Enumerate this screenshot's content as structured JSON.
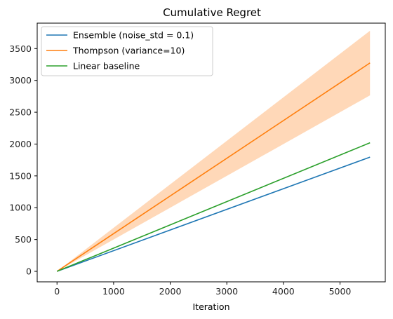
{
  "chart_data": {
    "type": "line",
    "title": "Cumulative Regret",
    "xlabel": "Iteration",
    "ylabel": "",
    "xlim": [
      -350,
      5800
    ],
    "ylim": [
      -165,
      3900
    ],
    "xticks": [
      0,
      1000,
      2000,
      3000,
      4000,
      5000
    ],
    "yticks": [
      0,
      500,
      1000,
      1500,
      2000,
      2500,
      3000,
      3500
    ],
    "grid": false,
    "legend_position": "top-left",
    "series": [
      {
        "name": "Ensemble (noise_std = 0.1)",
        "color": "#1f77b4",
        "x": [
          0,
          5530
        ],
        "y": [
          0,
          1795
        ]
      },
      {
        "name": "Thompson (variance=10)",
        "color": "#ff7f0e",
        "x": [
          0,
          5530
        ],
        "y": [
          0,
          3275
        ],
        "band": {
          "color": "#ffd8b8",
          "upper": [
            0,
            3780
          ],
          "lower": [
            0,
            2765
          ]
        }
      },
      {
        "name": "Linear baseline",
        "color": "#2ca02c",
        "x": [
          0,
          5530
        ],
        "y": [
          0,
          2020
        ]
      }
    ]
  }
}
